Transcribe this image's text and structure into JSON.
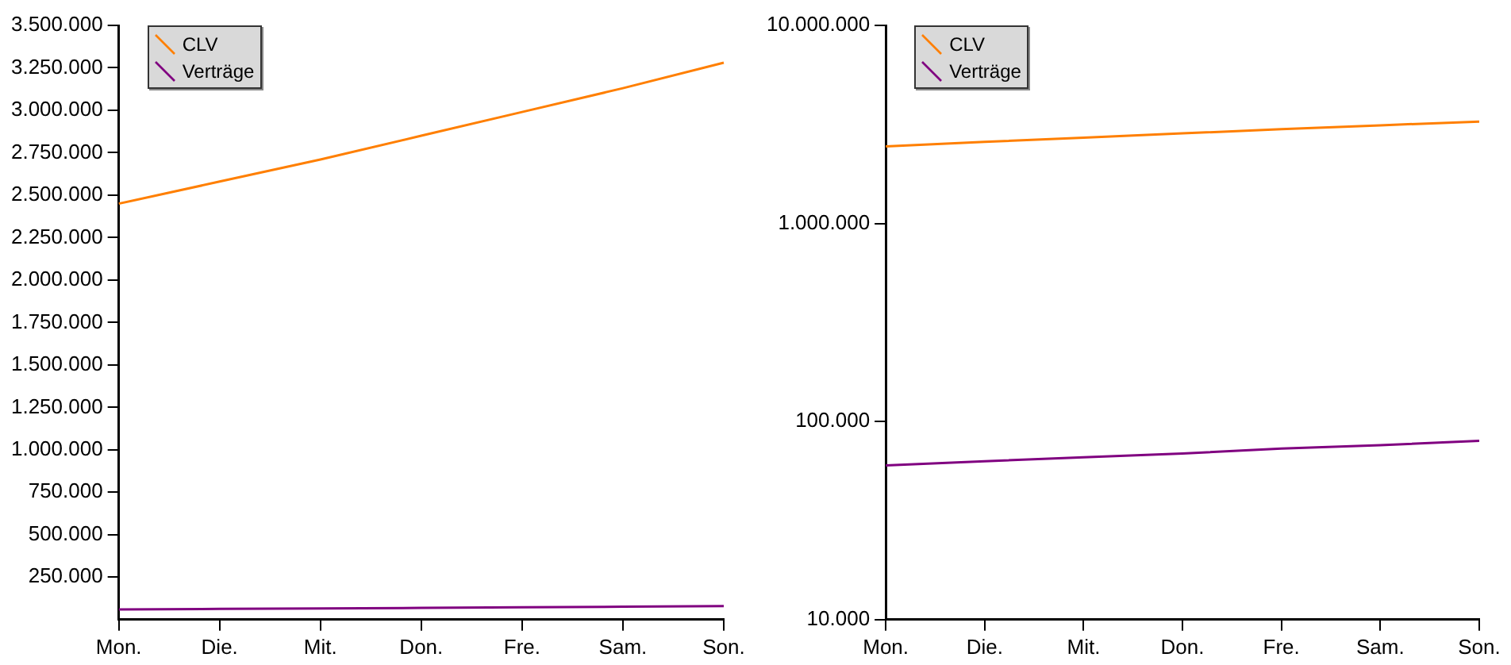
{
  "chart_data": [
    {
      "type": "line",
      "categories": [
        "Mon.",
        "Die.",
        "Mit.",
        "Don.",
        "Fre.",
        "Sam.",
        "Son."
      ],
      "series": [
        {
          "name": "CLV",
          "color": "#ff7f00",
          "values": [
            2450000,
            2580000,
            2710000,
            2850000,
            2990000,
            3130000,
            3280000
          ]
        },
        {
          "name": "Verträge",
          "color": "#800080",
          "values": [
            60000,
            63000,
            66000,
            69000,
            73000,
            76000,
            80000
          ]
        }
      ],
      "ylim": [
        0,
        3500000
      ],
      "yticks": [
        {
          "value": 250000,
          "label": "250.000"
        },
        {
          "value": 500000,
          "label": "500.000"
        },
        {
          "value": 750000,
          "label": "750.000"
        },
        {
          "value": 1000000,
          "label": "1.000.000"
        },
        {
          "value": 1250000,
          "label": "1.250.000"
        },
        {
          "value": 1500000,
          "label": "1.500.000"
        },
        {
          "value": 1750000,
          "label": "1.750.000"
        },
        {
          "value": 2000000,
          "label": "2.000.000"
        },
        {
          "value": 2250000,
          "label": "2.250.000"
        },
        {
          "value": 2500000,
          "label": "2.500.000"
        },
        {
          "value": 2750000,
          "label": "2.750.000"
        },
        {
          "value": 3000000,
          "label": "3.000.000"
        },
        {
          "value": 3250000,
          "label": "3.250.000"
        },
        {
          "value": 3500000,
          "label": "3.500.000"
        }
      ],
      "grid": false,
      "legend": "top left",
      "marker": "none"
    },
    {
      "type": "line",
      "categories": [
        "Mon.",
        "Die.",
        "Mit.",
        "Don.",
        "Fre.",
        "Sam.",
        "Son."
      ],
      "series": [
        {
          "name": "CLV",
          "color": "#ff7f00",
          "values": [
            2450000,
            2580000,
            2710000,
            2850000,
            2990000,
            3130000,
            3270000
          ]
        },
        {
          "name": "Verträge",
          "color": "#800080",
          "values": [
            60000,
            63000,
            66000,
            69000,
            73000,
            76000,
            80000
          ]
        }
      ],
      "ylim": [
        10000,
        10000000
      ],
      "yticks": [
        {
          "value": 10000,
          "label": "10.000"
        },
        {
          "value": 100000,
          "label": "100.000"
        },
        {
          "value": 1000000,
          "label": "1.000.000"
        },
        {
          "value": 10000000,
          "label": "10.000.000"
        }
      ],
      "log": true,
      "grid": false,
      "legend": "top left",
      "marker": "none"
    }
  ]
}
